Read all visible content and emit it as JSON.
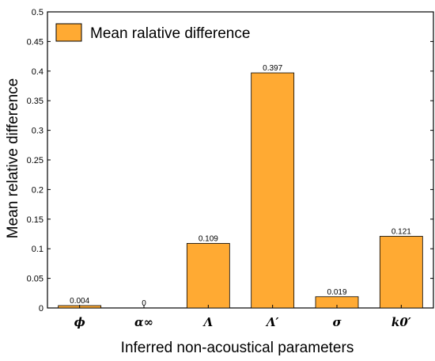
{
  "chart_data": {
    "type": "bar",
    "categories": [
      "ϕ",
      "α∞",
      "Λ",
      "Λ′",
      "σ",
      "k0′"
    ],
    "values": [
      0.004,
      0,
      0.109,
      0.397,
      0.019,
      0.121
    ],
    "data_labels": [
      "0.004",
      "0",
      "0.109",
      "0.397",
      "0.019",
      "0.121"
    ],
    "series": [
      {
        "name": "Mean ralative difference",
        "values": [
          0.004,
          0,
          0.109,
          0.397,
          0.019,
          0.121
        ]
      }
    ],
    "xlabel": "Inferred non-acoustical parameters",
    "ylabel": "Mean relative difference",
    "ylim": [
      0,
      0.5
    ],
    "yticks": [
      "0",
      "0.05",
      "0.1",
      "0.15",
      "0.2",
      "0.25",
      "0.3",
      "0.35",
      "0.4",
      "0.45",
      "0.5"
    ],
    "legend_position": "top-left",
    "grid": false,
    "colors": {
      "bar_fill": "#FFAA33",
      "bar_stroke": "#000000"
    }
  }
}
